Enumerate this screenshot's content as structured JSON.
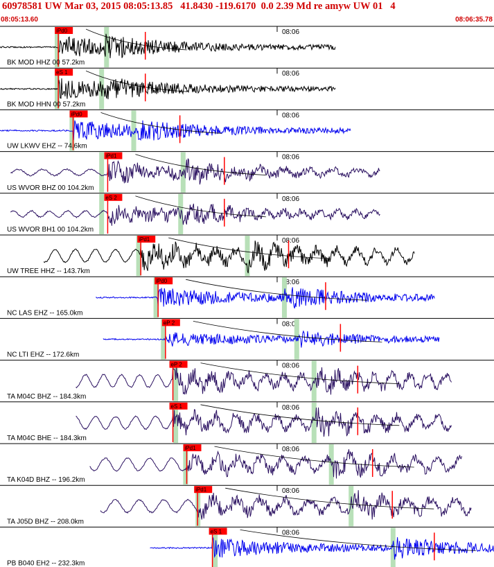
{
  "header": {
    "title": "60978581 UW Mar 03, 2015 08:05:13.85   41.8430 -119.6170  0.0 2.39 Md re amyw UW 01   4",
    "start_time": "08:05:13.60",
    "end_time": "08:06:35.78"
  },
  "colors": {
    "title": "#d00000",
    "pick": "#ff0000",
    "coda": "#b8e0b8",
    "black": "#000000",
    "blue": "#0000ee",
    "purple": "#2a1060"
  },
  "minute_label": "08:06",
  "traces": [
    {
      "label": "BK MOD HHZ 00 57.2km",
      "color": "black",
      "pick": "iPd0",
      "pick_alt": "",
      "p_t": 0.118,
      "s_t": 0.21,
      "end_t": 0.68,
      "amp": 0.95,
      "low": 0,
      "coda": [
        0.115,
        0.215
      ]
    },
    {
      "label": "BK MOD HHN 00 57.2km",
      "color": "black",
      "pick": "eS 1",
      "pick_alt": "",
      "p_t": 0.118,
      "s_t": 0.21,
      "end_t": 0.68,
      "amp": 0.9,
      "low": 0,
      "coda": [
        0.115,
        0.205
      ]
    },
    {
      "label": "UW LKWV EHZ -- 74.6km",
      "color": "blue",
      "pick": "iPd0",
      "pick_alt": "",
      "p_t": 0.148,
      "s_t": 0.28,
      "end_t": 0.71,
      "amp": 0.85,
      "low": 0,
      "coda": [
        0.145,
        0.27
      ]
    },
    {
      "label": "US WVOR BHZ 00 104.2km",
      "color": "purple",
      "pick": "iPd1",
      "pick_alt": "",
      "p_t": 0.218,
      "s_t": 0.37,
      "end_t": 0.77,
      "amp": 0.8,
      "low": 0.5,
      "coda": [
        0.205,
        0.37
      ]
    },
    {
      "label": "US WVOR BH1 00 104.2km",
      "color": "purple",
      "pick": "eS 2",
      "pick_alt": "",
      "p_t": 0.218,
      "s_t": 0.37,
      "end_t": 0.77,
      "amp": 0.7,
      "low": 0.5,
      "coda": [
        0.205,
        0.365
      ]
    },
    {
      "label": "UW TREE HHZ -- 143.7km",
      "color": "black",
      "pick": "iPd1",
      "pick_alt": "",
      "p_t": 0.285,
      "s_t": 0.5,
      "end_t": 0.84,
      "amp": 0.9,
      "low": 1,
      "coda": [
        0.28,
        0.5
      ]
    },
    {
      "label": "NC LAS EHZ -- 165.0km",
      "color": "blue",
      "pick": "iPd0",
      "pick_alt": "",
      "p_t": 0.32,
      "s_t": 0.575,
      "end_t": 0.88,
      "amp": 0.85,
      "low": 0,
      "coda": [
        0.315,
        0.575
      ]
    },
    {
      "label": "NC LTI EHZ -- 172.6km",
      "color": "blue",
      "pick": "eP 2",
      "pick_alt": "",
      "p_t": 0.335,
      "s_t": 0.605,
      "end_t": 0.89,
      "amp": 0.55,
      "low": 0,
      "coda": [
        0.33,
        0.6
      ]
    },
    {
      "label": "TA M04C BHZ -- 184.3km",
      "color": "purple",
      "pick": "eP 2",
      "pick_alt": "",
      "p_t": 0.35,
      "s_t": 0.64,
      "end_t": 0.915,
      "amp": 0.75,
      "low": 1,
      "coda": [
        0.355,
        0.635
      ]
    },
    {
      "label": "TA M04C BHE -- 184.3km",
      "color": "purple",
      "pick": "eS 1",
      "pick_alt": "",
      "p_t": 0.35,
      "s_t": 0.64,
      "end_t": 0.915,
      "amp": 0.75,
      "low": 1,
      "coda": [
        0.355,
        0.635
      ]
    },
    {
      "label": "TA K04D BHZ -- 196.2km",
      "color": "purple",
      "pick": "iPd1",
      "pick_alt": "",
      "p_t": 0.378,
      "s_t": 0.67,
      "end_t": 0.935,
      "amp": 0.75,
      "low": 1,
      "coda": [
        0.375,
        0.67
      ]
    },
    {
      "label": "TA J05D BHZ -- 208.0km",
      "color": "purple",
      "pick": "iPd1",
      "pick_alt": "",
      "p_t": 0.4,
      "s_t": 0.71,
      "end_t": 0.955,
      "amp": 0.75,
      "low": 1,
      "coda": [
        0.4,
        0.71
      ]
    },
    {
      "label": "PB B040 EH2 -- 232.3km",
      "color": "blue",
      "pick": "eS 1",
      "pick_alt": "",
      "p_t": 0.43,
      "s_t": 0.795,
      "end_t": 1.0,
      "amp": 0.85,
      "low": 0,
      "coda": [
        0.435,
        0.795
      ]
    }
  ]
}
